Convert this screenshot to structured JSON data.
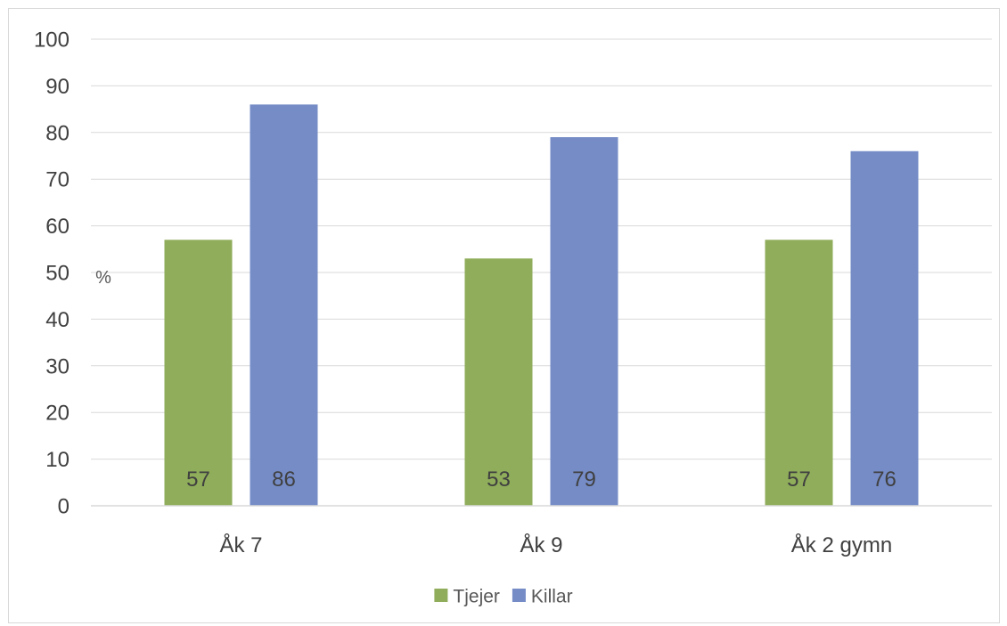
{
  "chart_data": {
    "type": "bar",
    "categories": [
      "Åk 7",
      "Åk 9",
      "Åk 2 gymn"
    ],
    "series": [
      {
        "name": "Tjejer",
        "values": [
          57,
          53,
          57
        ],
        "color": "#8fad5a"
      },
      {
        "name": "Killar",
        "values": [
          86,
          79,
          76
        ],
        "color": "#758cc7"
      }
    ],
    "ylim": [
      0,
      100
    ],
    "yticks": [
      0,
      10,
      20,
      30,
      40,
      50,
      60,
      70,
      80,
      90,
      100
    ],
    "ylabel": "%",
    "grid": true,
    "legend": "bottom-center",
    "data_labels": true
  }
}
